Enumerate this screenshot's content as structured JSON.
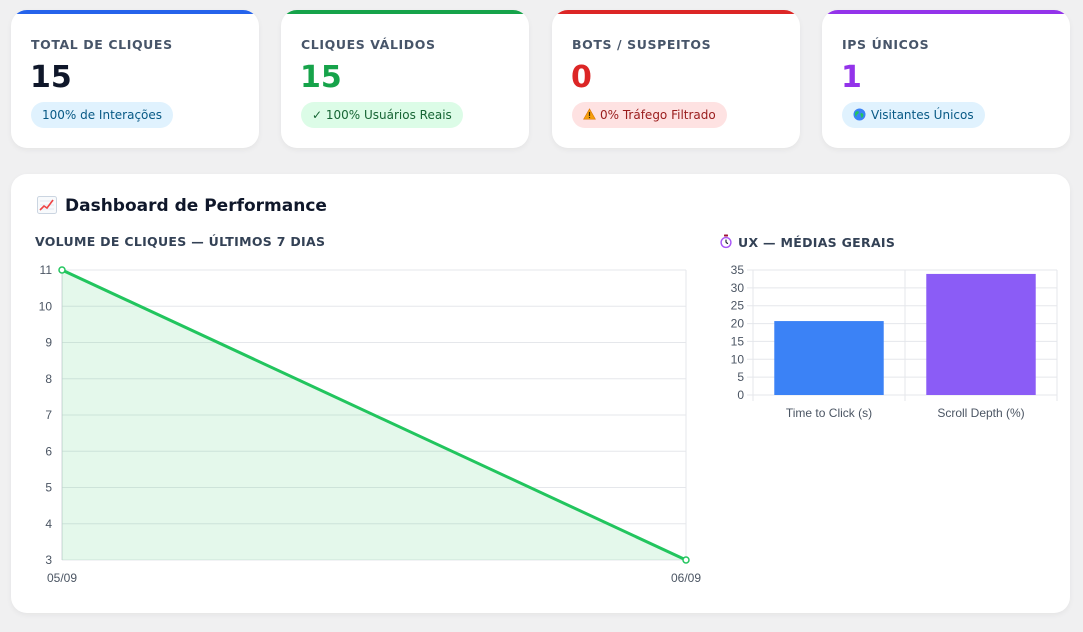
{
  "stats": [
    {
      "label": "TOTAL DE CLIQUES",
      "value": "15",
      "pill": "100% de Interações",
      "pill_icon": "",
      "accent": "#2563eb",
      "value_color": "#0f172a",
      "pill_bg": "#e0f2fe",
      "pill_color": "#075985"
    },
    {
      "label": "CLIQUES VÁLIDOS",
      "value": "15",
      "pill": "✓ 100% Usuários Reais",
      "pill_icon": "",
      "accent": "#16a34a",
      "value_color": "#16a34a",
      "pill_bg": "#dcfce7",
      "pill_color": "#166534"
    },
    {
      "label": "BOTS / SUSPEITOS",
      "value": "0",
      "pill": "0% Tráfego Filtrado",
      "pill_icon": "warning-icon",
      "accent": "#dc2626",
      "value_color": "#dc2626",
      "pill_bg": "#fee2e2",
      "pill_color": "#991b1b"
    },
    {
      "label": "IPS ÚNICOS",
      "value": "1",
      "pill": "Visitantes Únicos",
      "pill_icon": "globe-icon",
      "accent": "#9333ea",
      "value_color": "#9333ea",
      "pill_bg": "#e0f2fe",
      "pill_color": "#075985"
    }
  ],
  "dashboard": {
    "title": "Dashboard de Performance",
    "title_icon": "chart-increasing-icon",
    "volume_title": "VOLUME DE CLIQUES — ÚLTIMOS 7 DIAS",
    "ux_title": "UX — MÉDIAS GERAIS",
    "ux_icon": "stopwatch-icon"
  },
  "chart_data": [
    {
      "type": "area",
      "title": "VOLUME DE CLIQUES — ÚLTIMOS 7 DIAS",
      "x": [
        "05/09",
        "06/09"
      ],
      "series": [
        {
          "values": [
            11,
            3
          ]
        }
      ],
      "ylim": [
        3,
        11
      ],
      "yticks": [
        3,
        4,
        5,
        6,
        7,
        8,
        9,
        10,
        11
      ],
      "grid": true,
      "color": "#22c55e"
    },
    {
      "type": "bar",
      "title": "UX — MÉDIAS GERAIS",
      "categories": [
        "Time to Click (s)",
        "Scroll Depth (%)"
      ],
      "values": [
        20.7,
        33.9
      ],
      "colors": [
        "#3b82f6",
        "#8b5cf6"
      ],
      "ylim": [
        0,
        35
      ],
      "yticks": [
        0,
        5,
        10,
        15,
        20,
        25,
        30,
        35
      ],
      "grid": true
    }
  ]
}
